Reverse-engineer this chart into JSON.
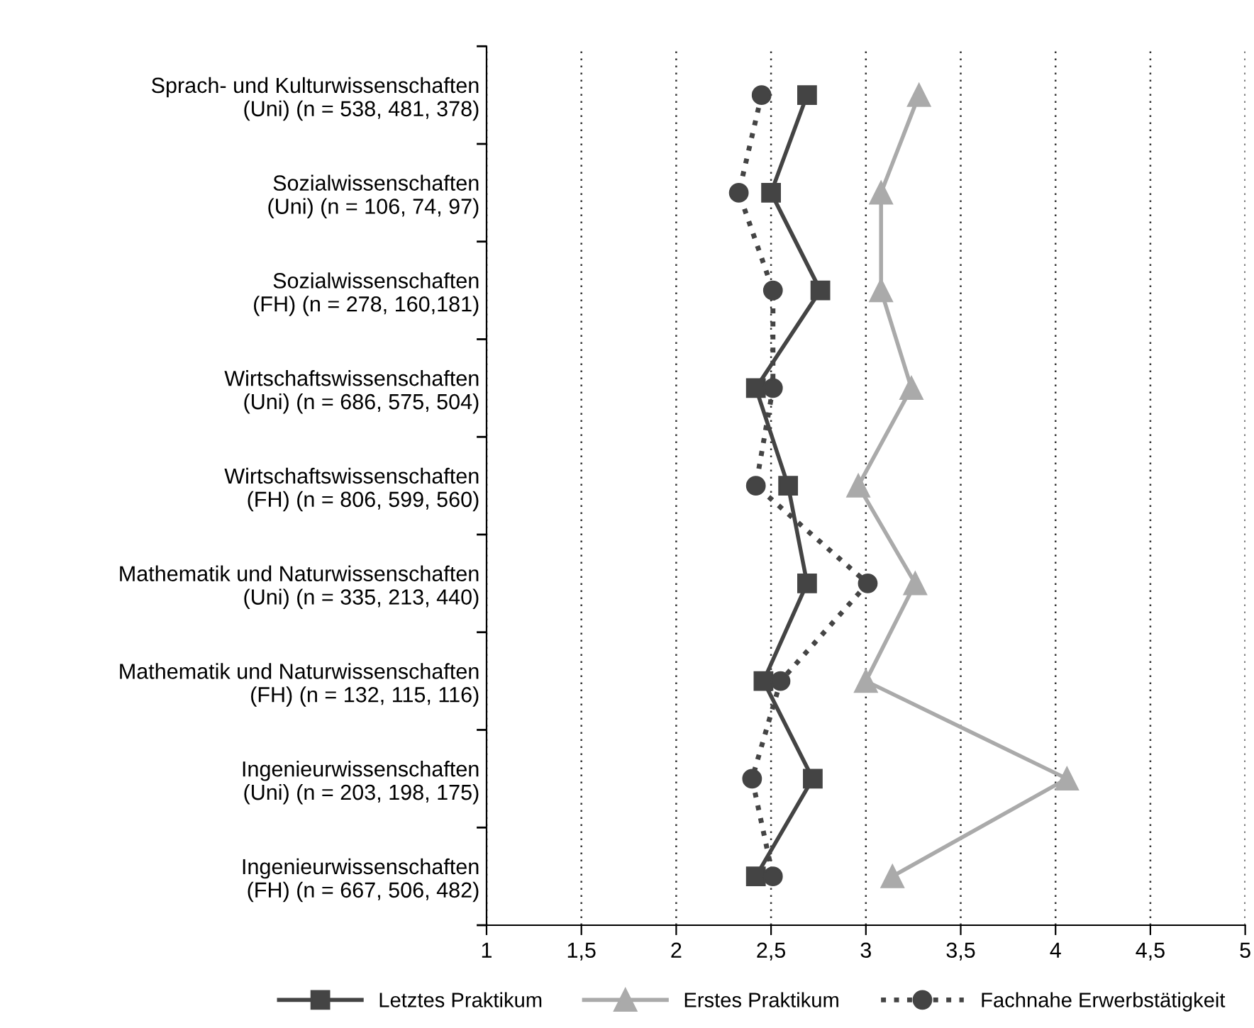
{
  "chart_data": {
    "type": "line",
    "orientation": "horizontal",
    "categories": [
      "Sprach- und Kulturwissenschaften\n(Uni) (n = 538, 481, 378)",
      "Sozialwissenschaften\n(Uni) (n = 106, 74, 97)",
      "Sozialwissenschaften\n(FH) (n = 278, 160,181)",
      "Wirtschaftswissenschaften\n(Uni) (n = 686, 575, 504)",
      "Wirtschaftswissenschaften\n(FH) (n = 806, 599, 560)",
      "Mathematik und Naturwissenschaften\n(Uni) (n = 335, 213, 440)",
      "Mathematik und Naturwissenschaften\n(FH) (n = 132, 115, 116)",
      "Ingenieurwissenschaften\n(Uni) (n = 203, 198, 175)",
      "Ingenieurwissenschaften\n(FH) (n = 667, 506, 482)"
    ],
    "series": [
      {
        "name": "Letztes Praktikum",
        "color": "#444444",
        "marker": "square",
        "line_style": "solid",
        "values": [
          2.69,
          2.5,
          2.76,
          2.42,
          2.59,
          2.69,
          2.46,
          2.72,
          2.42
        ]
      },
      {
        "name": "Erstes Praktikum",
        "color": "#aaaaaa",
        "marker": "triangle",
        "line_style": "solid",
        "values": [
          3.28,
          3.08,
          3.08,
          3.24,
          2.96,
          3.26,
          3.0,
          4.06,
          3.14
        ]
      },
      {
        "name": "Fachnahe Erwerbstätigkeit",
        "color": "#444444",
        "marker": "circle",
        "line_style": "dotted",
        "values": [
          2.45,
          2.33,
          2.51,
          2.51,
          2.42,
          3.01,
          2.55,
          2.4,
          2.51
        ]
      }
    ],
    "xlim": [
      1,
      5
    ],
    "xticks": [
      1,
      {
        "value": 1.5,
        "label": "1,5"
      },
      2,
      {
        "value": 2.5,
        "label": "2,5"
      },
      3,
      {
        "value": 3.5,
        "label": "3,5"
      },
      4,
      {
        "value": 4.5,
        "label": "4,5"
      },
      5
    ],
    "grid": "x",
    "legend": "bottom"
  }
}
